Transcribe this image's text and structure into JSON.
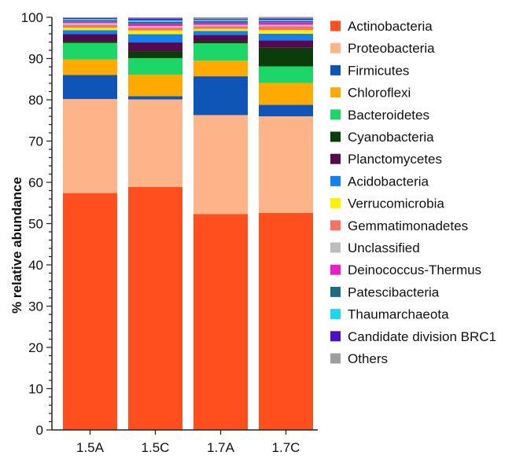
{
  "chart_data": {
    "type": "bar",
    "stacked": true,
    "categories": [
      "1.5A",
      "1.5C",
      "1.7A",
      "1.7C"
    ],
    "ylabel": "% relative abundance",
    "xlabel": "",
    "ylim": [
      0,
      100
    ],
    "yticks": [
      0,
      10,
      20,
      30,
      40,
      50,
      60,
      70,
      80,
      90,
      100
    ],
    "legend_position": "right",
    "series": [
      {
        "name": "Actinobacteria",
        "color": "#FF4F1E",
        "values": [
          57.4,
          58.9,
          52.3,
          52.6
        ]
      },
      {
        "name": "Proteobacteria",
        "color": "#FDB489",
        "values": [
          22.8,
          21.2,
          24.0,
          23.4
        ]
      },
      {
        "name": "Firmicutes",
        "color": "#0F55B8",
        "values": [
          5.8,
          0.8,
          9.4,
          2.8
        ]
      },
      {
        "name": "Chloroflexi",
        "color": "#FFAA00",
        "values": [
          3.8,
          5.2,
          3.8,
          5.3
        ]
      },
      {
        "name": "Bacteroidetes",
        "color": "#1CD667",
        "values": [
          4.0,
          4.0,
          4.2,
          4.0
        ]
      },
      {
        "name": "Cyanobacteria",
        "color": "#0B3D0B",
        "values": [
          0.4,
          1.7,
          0.5,
          4.5
        ]
      },
      {
        "name": "Planctomycetes",
        "color": "#550A50",
        "values": [
          1.7,
          2.1,
          1.5,
          1.8
        ]
      },
      {
        "name": "Acidobacteria",
        "color": "#1480F0",
        "values": [
          1.0,
          2.0,
          1.0,
          1.6
        ]
      },
      {
        "name": "Verrucomicrobia",
        "color": "#FFF200",
        "values": [
          0.6,
          0.9,
          0.5,
          0.9
        ]
      },
      {
        "name": "Gemmatimonadetes",
        "color": "#F87167",
        "values": [
          0.6,
          0.7,
          0.6,
          0.9
        ]
      },
      {
        "name": "Unclassified",
        "color": "#BDBDBD",
        "values": [
          0.5,
          0.4,
          0.4,
          0.4
        ]
      },
      {
        "name": "Deinococcus-Thermus",
        "color": "#E91EC8",
        "values": [
          0.4,
          0.6,
          0.5,
          0.6
        ]
      },
      {
        "name": "Patescibacteria",
        "color": "#1C6B80",
        "values": [
          0.3,
          0.4,
          0.4,
          0.3
        ]
      },
      {
        "name": "Thaumarchaeota",
        "color": "#1ED6F0",
        "values": [
          0.3,
          0.4,
          0.3,
          0.3
        ]
      },
      {
        "name": "Candidate division BRC1",
        "color": "#4A10C8",
        "values": [
          0.2,
          0.4,
          0.2,
          0.3
        ]
      },
      {
        "name": "Others",
        "color": "#9E9E9E",
        "values": [
          0.2,
          0.3,
          0.4,
          0.4
        ]
      }
    ]
  }
}
